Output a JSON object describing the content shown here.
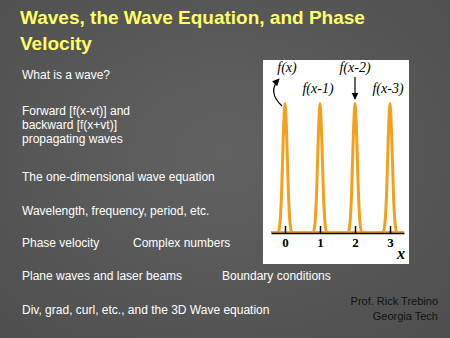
{
  "slide": {
    "title": [
      "Waves, the Wave Equation, and Phase",
      "Velocity"
    ],
    "items": [
      {
        "lines": [
          "What is a wave?"
        ]
      },
      {
        "lines": [
          "Forward [f(x-vt)] and",
          "backward [f(x+vt)]",
          "propagating waves"
        ]
      },
      {
        "lines": [
          "The one-dimensional wave equation"
        ]
      },
      {
        "lines": [
          "Wavelength, frequency, period, etc."
        ]
      },
      {
        "columns": [
          "Phase velocity",
          "Complex numbers"
        ]
      },
      {
        "columns": [
          "Plane waves and laser beams",
          "Boundary conditions"
        ]
      },
      {
        "lines": [
          "Div, grad, curl, etc., and the 3D Wave equation"
        ]
      }
    ],
    "author": [
      "Prof. Rick Trebino",
      "Georgia Tech"
    ]
  },
  "chart_data": {
    "type": "line",
    "color": "#f5a01a",
    "xlabel": "x",
    "tick_labels": "x",
    "x": [
      -0.4,
      -0.2,
      -0.15,
      -0.1,
      -0.05,
      0,
      0.05,
      0.1,
      0.15,
      0.2,
      0.8,
      0.85,
      0.9,
      0.95,
      1,
      1.05,
      1.1,
      1.15,
      1.2,
      1.8,
      1.85,
      1.9,
      1.95,
      2,
      2.05,
      2.1,
      2.15,
      2.2,
      2.8,
      2.85,
      2.9,
      2.95,
      3,
      3.05,
      3.1,
      3.15,
      3.2,
      3.4
    ],
    "xlim": [
      -0.4,
      3.4
    ],
    "xticks": [
      0,
      1,
      2,
      3
    ],
    "ylim": [
      0,
      1.05
    ],
    "series": [
      {
        "name": "f(x)",
        "values": [
          0,
          0,
          0.06,
          0.29,
          0.73,
          1,
          0.73,
          0.29,
          0.06,
          0,
          0,
          0,
          0,
          0,
          0,
          0,
          0,
          0,
          0,
          0,
          0,
          0,
          0,
          0,
          0,
          0,
          0,
          0,
          0,
          0,
          0,
          0,
          0,
          0,
          0,
          0,
          0,
          0
        ]
      },
      {
        "name": "f(x-1)",
        "values": [
          0,
          0,
          0,
          0,
          0,
          0,
          0,
          0,
          0,
          0,
          0,
          0.06,
          0.29,
          0.73,
          1,
          0.73,
          0.29,
          0.06,
          0,
          0,
          0,
          0,
          0,
          0,
          0,
          0,
          0,
          0,
          0,
          0,
          0,
          0,
          0,
          0,
          0,
          0,
          0,
          0
        ]
      },
      {
        "name": "f(x-2)",
        "values": [
          0,
          0,
          0,
          0,
          0,
          0,
          0,
          0,
          0,
          0,
          0,
          0,
          0,
          0,
          0,
          0,
          0,
          0,
          0,
          0,
          0.06,
          0.29,
          0.73,
          1,
          0.73,
          0.29,
          0.06,
          0,
          0,
          0,
          0,
          0,
          0,
          0,
          0,
          0,
          0,
          0
        ]
      },
      {
        "name": "f(x-3)",
        "values": [
          0,
          0,
          0,
          0,
          0,
          0,
          0,
          0,
          0,
          0,
          0,
          0,
          0,
          0,
          0,
          0,
          0,
          0,
          0,
          0,
          0,
          0,
          0,
          0,
          0,
          0,
          0,
          0,
          0,
          0.06,
          0.29,
          0.73,
          1,
          0.73,
          0.29,
          0.06,
          0,
          0
        ]
      }
    ]
  }
}
